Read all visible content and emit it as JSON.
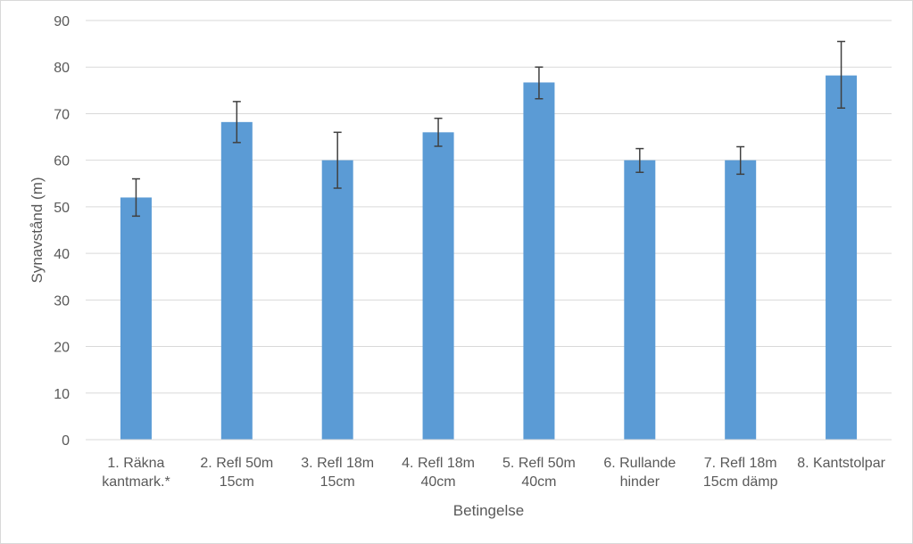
{
  "chart_data": {
    "type": "bar",
    "title": "",
    "xlabel": "Betingelse",
    "ylabel": "Synavstånd (m)",
    "ylim": [
      0,
      90
    ],
    "ytick_step": 10,
    "yticks": [
      "0",
      "10",
      "20",
      "30",
      "40",
      "50",
      "60",
      "70",
      "80",
      "90"
    ],
    "grid": true,
    "legend": "none",
    "bar_color": "#5b9bd5",
    "errorbar_color": "#404040",
    "categories": [
      [
        "1. Räkna",
        "kantmark.*"
      ],
      [
        "2. Refl 50m",
        "15cm"
      ],
      [
        "3. Refl 18m",
        "15cm"
      ],
      [
        "4. Refl 18m",
        "40cm"
      ],
      [
        "5. Refl 50m",
        "40cm"
      ],
      [
        "6. Rullande",
        "hinder"
      ],
      [
        "7. Refl 18m",
        "15cm dämp"
      ],
      [
        "8. Kantstolpar"
      ]
    ],
    "values": [
      52,
      68.2,
      60,
      66,
      76.7,
      60,
      60,
      78.2
    ],
    "error_low": [
      48,
      63.8,
      54,
      63,
      73.2,
      57.4,
      57,
      71.2
    ],
    "error_high": [
      56,
      72.6,
      66,
      69,
      80,
      62.5,
      62.9,
      85.5
    ]
  }
}
